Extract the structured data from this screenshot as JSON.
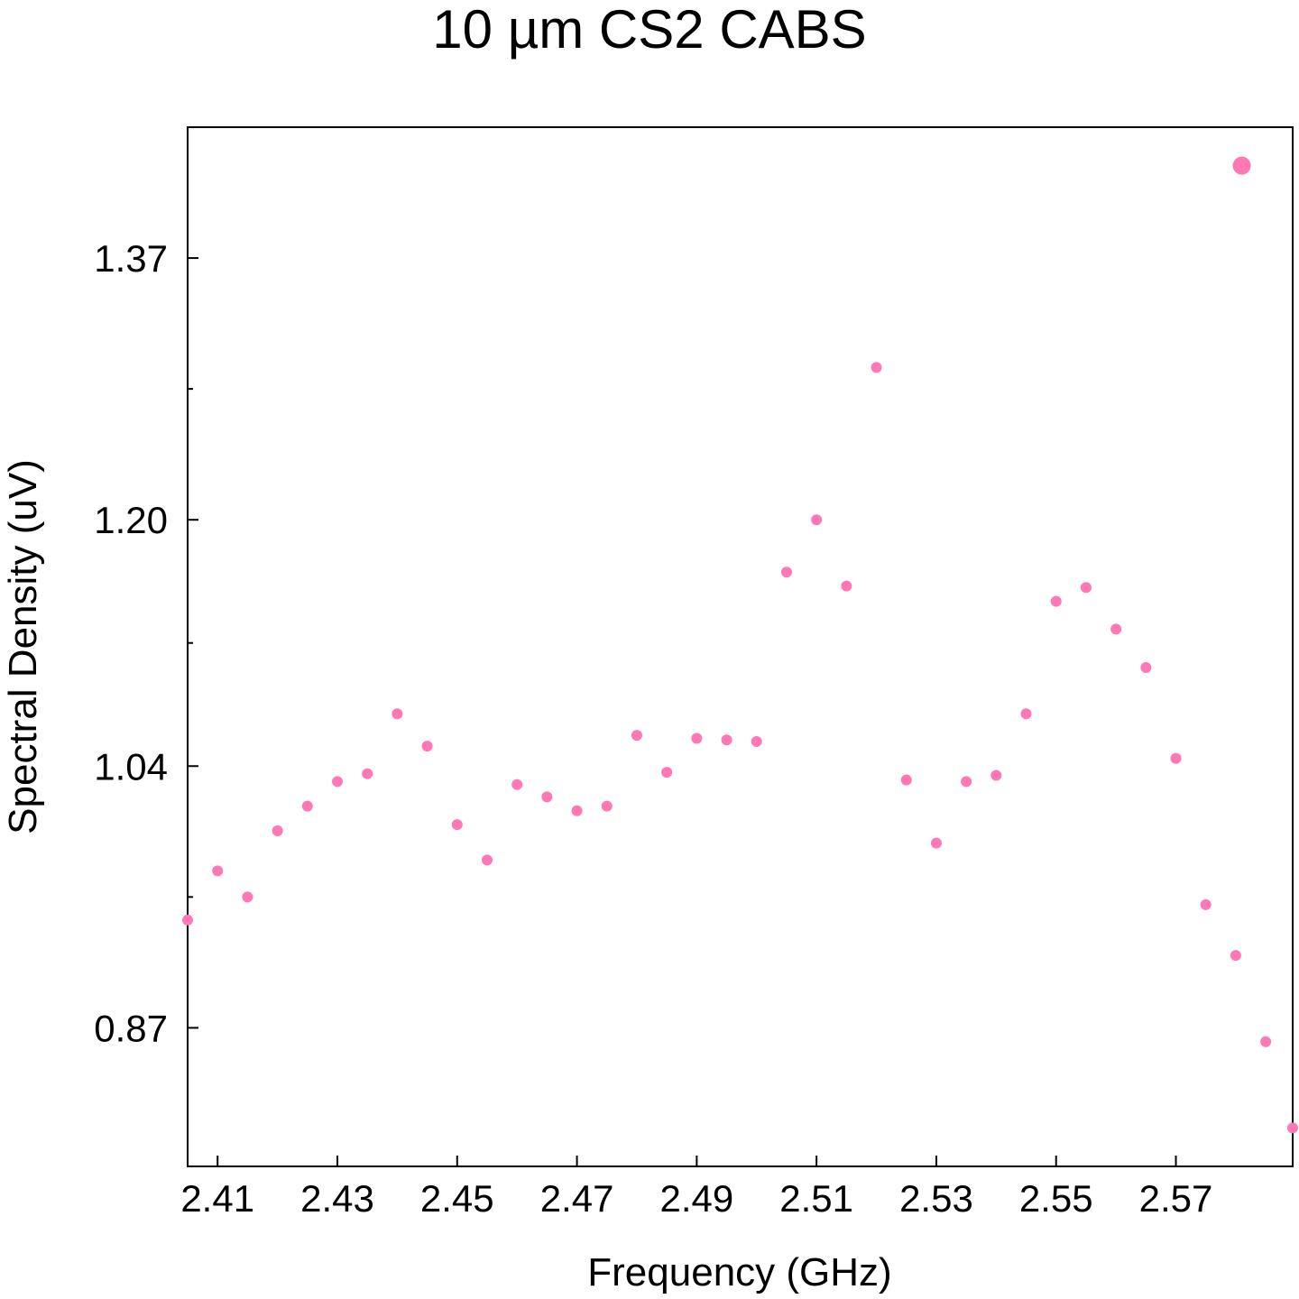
{
  "chart_data": {
    "type": "scatter",
    "title": "10 µm CS2 CABS",
    "xlabel": "Frequency (GHz)",
    "ylabel": "Spectral Density (uV)",
    "xlim": [
      2.405,
      2.5895
    ],
    "ylim": [
      0.78,
      1.455
    ],
    "x_ticks": [
      2.41,
      2.43,
      2.45,
      2.47,
      2.49,
      2.51,
      2.53,
      2.55,
      2.57
    ],
    "x_tick_labels": [
      "2.41",
      "2.43",
      "2.45",
      "2.47",
      "2.49",
      "2.51",
      "2.53",
      "2.55",
      "2.57"
    ],
    "y_ticks": [
      0.87,
      1.04,
      1.2,
      1.37
    ],
    "y_tick_labels": [
      "0.87",
      "1.04",
      "1.20",
      "1.37"
    ],
    "y_minor_ticks": [
      0.955,
      1.12,
      1.285
    ],
    "grid": false,
    "marker_color": "#ff77b4",
    "series": [
      {
        "x": [
          2.405,
          2.41,
          2.415,
          2.42,
          2.425,
          2.43,
          2.435,
          2.44,
          2.445,
          2.45,
          2.455,
          2.46,
          2.465,
          2.47,
          2.475,
          2.48,
          2.485,
          2.49,
          2.495,
          2.5,
          2.505,
          2.51,
          2.515,
          2.52,
          2.525,
          2.53,
          2.535,
          2.54,
          2.545,
          2.55,
          2.555,
          2.56,
          2.565,
          2.57,
          2.575,
          2.58,
          2.585,
          2.5895
        ],
        "y": [
          0.94,
          0.972,
          0.955,
          0.998,
          1.014,
          1.03,
          1.035,
          1.074,
          1.053,
          1.002,
          0.979,
          1.028,
          1.02,
          1.011,
          1.014,
          1.06,
          1.036,
          1.058,
          1.057,
          1.056,
          1.166,
          1.2,
          1.157,
          1.299,
          1.031,
          0.99,
          1.03,
          1.034,
          1.074,
          1.147,
          1.156,
          1.129,
          1.104,
          1.045,
          0.95,
          0.917,
          0.861,
          0.805
        ]
      }
    ],
    "highlight_point": {
      "x": 2.581,
      "y": 1.43
    }
  }
}
